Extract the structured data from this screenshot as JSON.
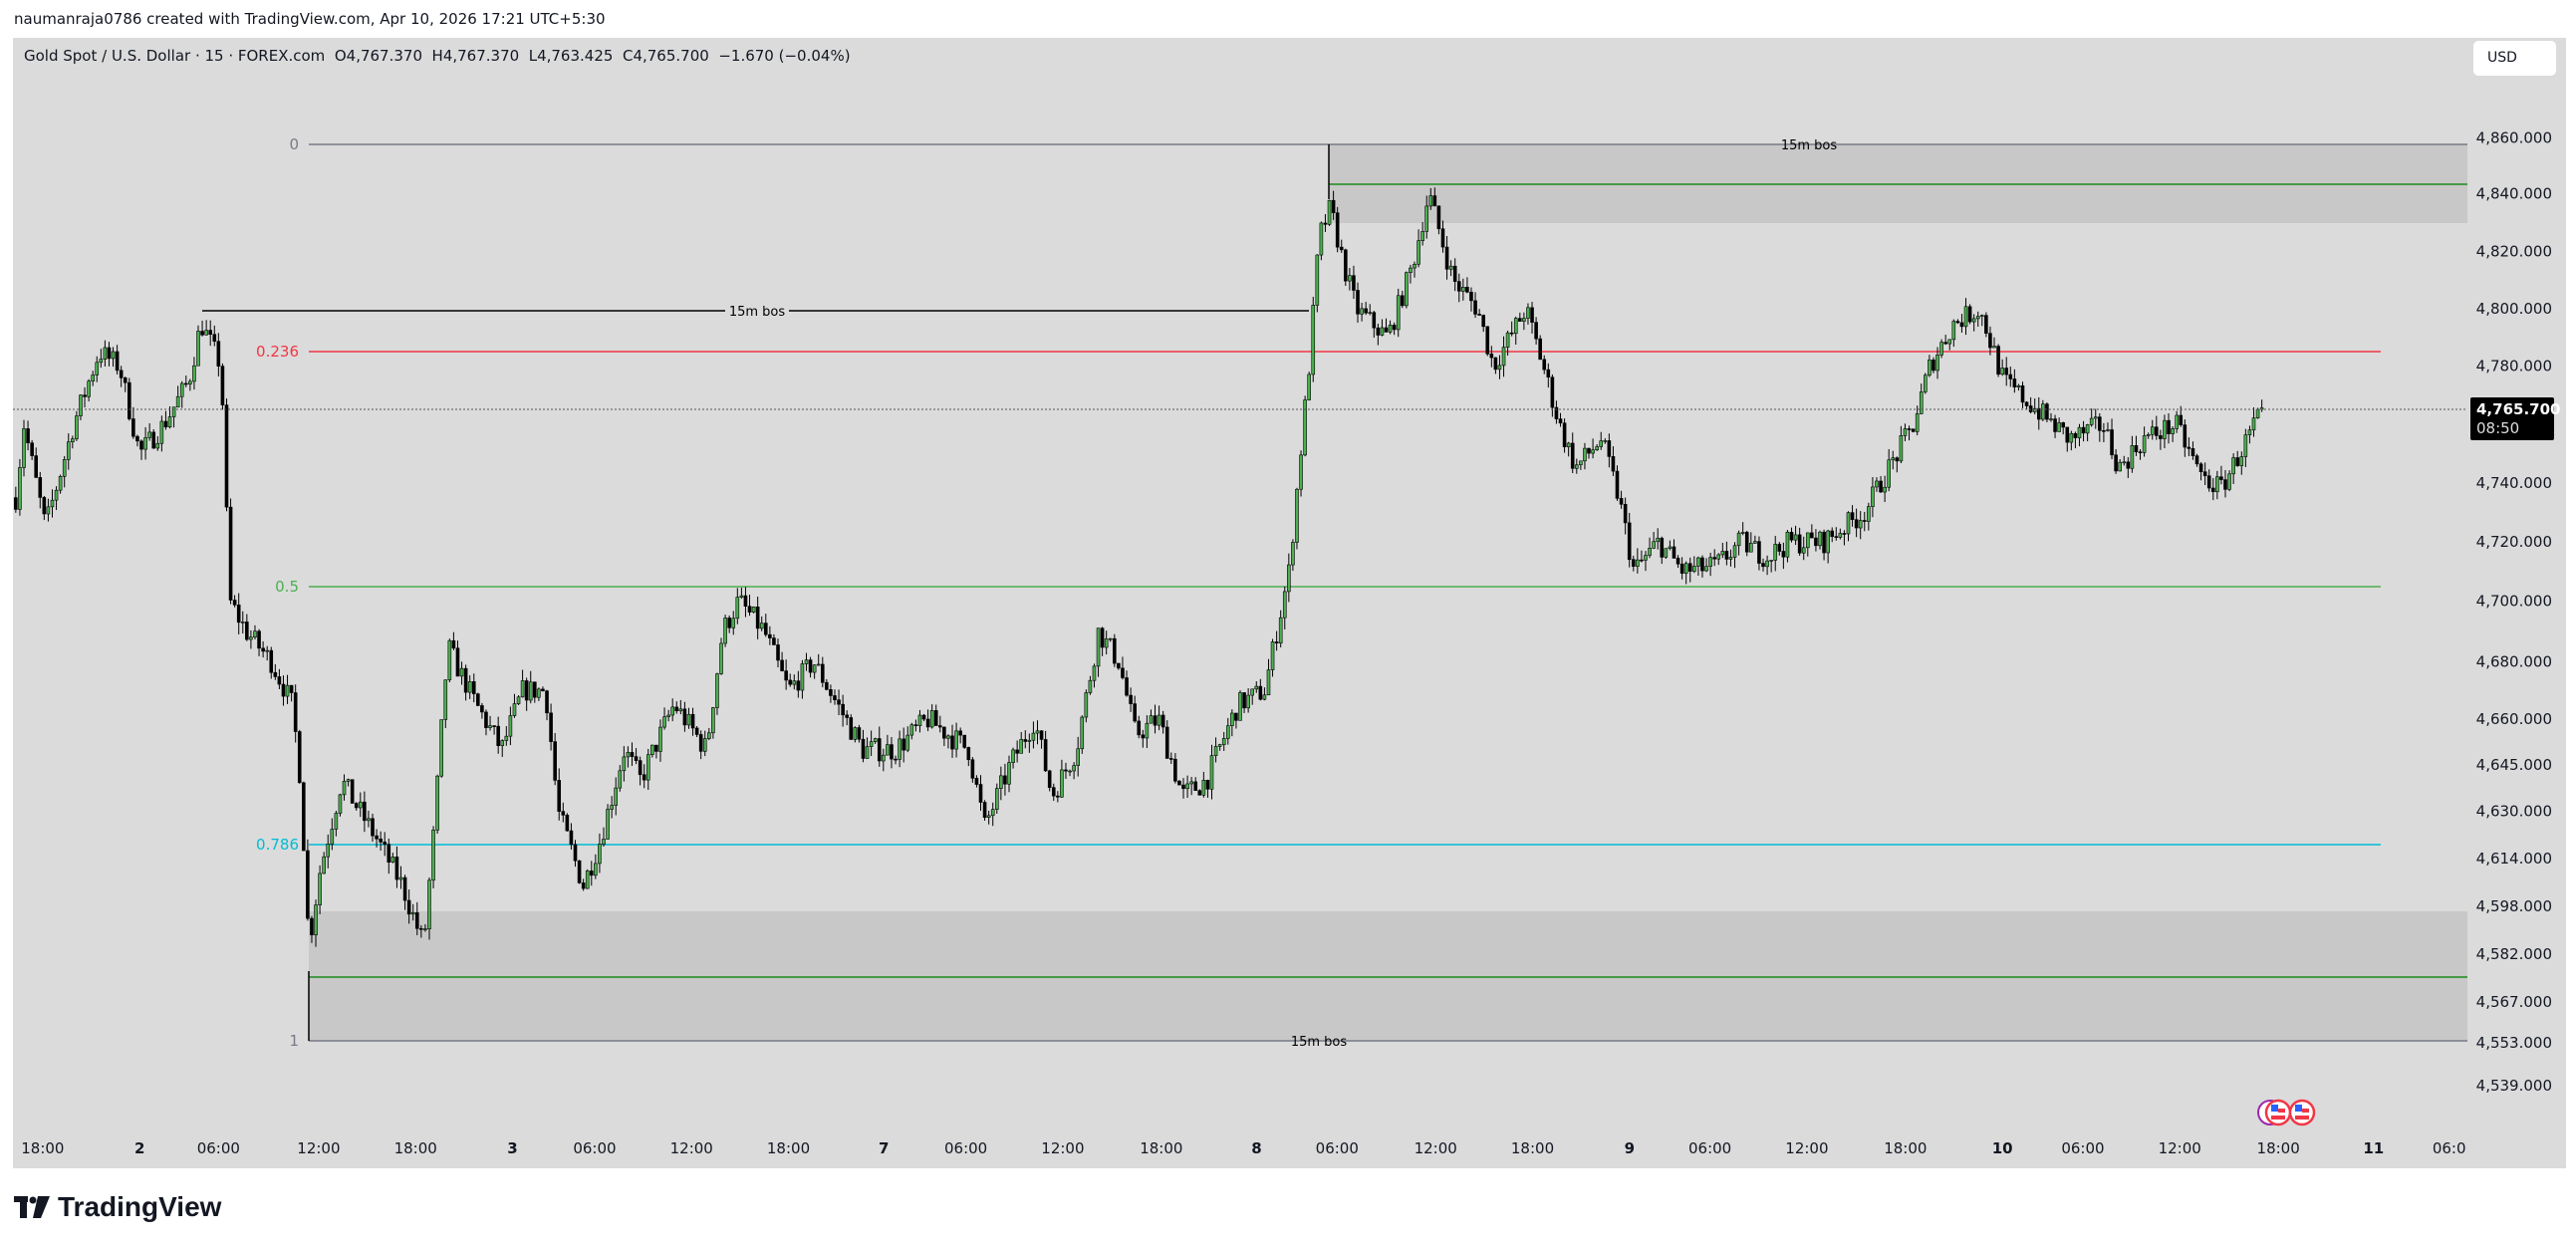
{
  "credit": "naumanraja0786 created with TradingView.com, Apr 10, 2026 17:21 UTC+5:30",
  "legend": {
    "symbol": "Gold Spot / U.S. Dollar · 15 · FOREX.com",
    "open": "O4,767.370",
    "high": "H4,767.370",
    "low": "L4,763.425",
    "close": "C4,765.700",
    "change": "−1.670 (−0.04%)"
  },
  "currency_button": "USD",
  "last_price": {
    "price": "4,765.700",
    "countdown": "08:50"
  },
  "brand": "TradingView",
  "annotations": {
    "fib_levels": [
      "0",
      "0.236",
      "0.5",
      "0.786",
      "1"
    ],
    "fib_colors": [
      "#787b86",
      "#f23645",
      "#4caf50",
      "#00bcd4",
      "#787b86"
    ],
    "bos_top": "15m bos",
    "bos_left": "15m bos",
    "bos_bottom": "15m bos"
  },
  "colors": {
    "bull": "#4caf50",
    "bear": "#000000",
    "zone": "#c8c8c8",
    "zone_line": "#1b8a1b"
  },
  "chart_data": {
    "type": "candlestick",
    "interval": "15",
    "y_ticks": [
      "4,860.000",
      "4,840.000",
      "4,820.000",
      "4,800.000",
      "4,780.000",
      "4,740.000",
      "4,720.000",
      "4,700.000",
      "4,680.000",
      "4,660.000",
      "4,645.000",
      "4,630.000",
      "4,614.000",
      "4,598.000",
      "4,582.000",
      "4,567.000",
      "4,553.000",
      "4,539.000"
    ],
    "x_ticks": [
      {
        "label": "18:00",
        "t": "1 18:00"
      },
      {
        "label": "2",
        "t": "2 00:00",
        "day": true
      },
      {
        "label": "06:00",
        "t": "2 06:00"
      },
      {
        "label": "12:00",
        "t": "2 12:00"
      },
      {
        "label": "18:00",
        "t": "2 18:00"
      },
      {
        "label": "3",
        "t": "3 00:00",
        "day": true
      },
      {
        "label": "06:00",
        "t": "3 06:00"
      },
      {
        "label": "12:00",
        "t": "3 12:00"
      },
      {
        "label": "18:00",
        "t": "3 18:00"
      },
      {
        "label": "7",
        "t": "7 00:00",
        "day": true
      },
      {
        "label": "06:00",
        "t": "7 06:00"
      },
      {
        "label": "12:00",
        "t": "7 12:00"
      },
      {
        "label": "18:00",
        "t": "7 18:00"
      },
      {
        "label": "8",
        "t": "8 00:00",
        "day": true
      },
      {
        "label": "06:00",
        "t": "8 06:00"
      },
      {
        "label": "12:00",
        "t": "8 12:00"
      },
      {
        "label": "18:00",
        "t": "8 18:00"
      },
      {
        "label": "9",
        "t": "9 00:00",
        "day": true
      },
      {
        "label": "06:00",
        "t": "9 06:00"
      },
      {
        "label": "12:00",
        "t": "9 12:00"
      },
      {
        "label": "18:00",
        "t": "9 18:00"
      },
      {
        "label": "10",
        "t": "10 00:00",
        "day": true
      },
      {
        "label": "06:00",
        "t": "10 06:00"
      },
      {
        "label": "12:00",
        "t": "10 12:00"
      },
      {
        "label": "18:00",
        "t": "10 18:00"
      },
      {
        "label": "11",
        "t": "11 00:00",
        "day": true
      },
      {
        "label": "06:0",
        "t": "11 06:00"
      }
    ],
    "approx_price_path": [
      [
        "1 16:20",
        4735
      ],
      [
        "1 16:50",
        4760
      ],
      [
        "1 18:10",
        4725
      ],
      [
        "1 19:55",
        4760
      ],
      [
        "1 21:30",
        4785
      ],
      [
        "1 22:45",
        4780
      ],
      [
        "2 00:00",
        4750
      ],
      [
        "2 01:50",
        4760
      ],
      [
        "2 03:45",
        4775
      ],
      [
        "2 04:40",
        4795
      ],
      [
        "2 06:10",
        4780
      ],
      [
        "2 06:40",
        4700
      ],
      [
        "2 07:40",
        4690
      ],
      [
        "2 09:10",
        4680
      ],
      [
        "2 10:25",
        4665
      ],
      [
        "2 10:55",
        4640
      ],
      [
        "2 11:25",
        4585
      ],
      [
        "2 12:05",
        4610
      ],
      [
        "2 13:25",
        4640
      ],
      [
        "2 15:40",
        4620
      ],
      [
        "2 17:10",
        4605
      ],
      [
        "2 18:30",
        4585
      ],
      [
        "2 19:10",
        4625
      ],
      [
        "2 20:00",
        4685
      ],
      [
        "2 21:45",
        4665
      ],
      [
        "2 23:20",
        4650
      ],
      [
        "3 00:45",
        4670
      ],
      [
        "3 02:25",
        4670
      ],
      [
        "3 03:20",
        4630
      ],
      [
        "3 05:10",
        4605
      ],
      [
        "3 06:20",
        4620
      ],
      [
        "3 07:50",
        4650
      ],
      [
        "3 08:50",
        4640
      ],
      [
        "3 10:55",
        4665
      ],
      [
        "3 12:55",
        4650
      ],
      [
        "3 13:55",
        4690
      ],
      [
        "3 14:55",
        4700
      ],
      [
        "3 16:30",
        4690
      ],
      [
        "3 18:00",
        4670
      ],
      [
        "3 19:35",
        4680
      ],
      [
        "3 21:05",
        4665
      ],
      [
        "3 22:40",
        4650
      ],
      [
        "7 00:50",
        4650
      ],
      [
        "7 03:15",
        4660
      ],
      [
        "7 06:10",
        4650
      ],
      [
        "7 07:10",
        4625
      ],
      [
        "7 08:45",
        4645
      ],
      [
        "7 10:15",
        4660
      ],
      [
        "7 11:20",
        4635
      ],
      [
        "7 12:50",
        4650
      ],
      [
        "7 14:10",
        4690
      ],
      [
        "7 15:25",
        4680
      ],
      [
        "7 16:25",
        4655
      ],
      [
        "7 17:50",
        4660
      ],
      [
        "7 19:20",
        4635
      ],
      [
        "7 20:50",
        4640
      ],
      [
        "7 22:50",
        4665
      ],
      [
        "8 00:35",
        4670
      ],
      [
        "8 02:25",
        4710
      ],
      [
        "8 03:55",
        4780
      ],
      [
        "8 04:40",
        4825
      ],
      [
        "8 05:30",
        4835
      ],
      [
        "8 06:25",
        4815
      ],
      [
        "8 07:10",
        4800
      ],
      [
        "8 09:05",
        4790
      ],
      [
        "8 10:35",
        4815
      ],
      [
        "8 11:35",
        4840
      ],
      [
        "8 13:05",
        4810
      ],
      [
        "8 14:35",
        4800
      ],
      [
        "8 15:35",
        4780
      ],
      [
        "8 17:35",
        4800
      ],
      [
        "8 18:40",
        4780
      ],
      [
        "8 19:40",
        4760
      ],
      [
        "8 20:40",
        4745
      ],
      [
        "8 22:15",
        4755
      ],
      [
        "8 23:20",
        4735
      ],
      [
        "9 00:20",
        4710
      ],
      [
        "9 02:10",
        4720
      ],
      [
        "9 04:00",
        4710
      ],
      [
        "9 06:25",
        4712
      ],
      [
        "9 07:55",
        4720
      ],
      [
        "9 09:30",
        4715
      ],
      [
        "9 11:00",
        4720
      ],
      [
        "9 13:00",
        4720
      ],
      [
        "9 15:30",
        4730
      ],
      [
        "9 17:00",
        4745
      ],
      [
        "9 18:30",
        4760
      ],
      [
        "9 19:30",
        4780
      ],
      [
        "9 21:00",
        4795
      ],
      [
        "9 22:35",
        4800
      ],
      [
        "10 00:05",
        4775
      ],
      [
        "10 02:35",
        4765
      ],
      [
        "10 05:00",
        4755
      ],
      [
        "10 07:15",
        4760
      ],
      [
        "10 08:15",
        4745
      ],
      [
        "10 09:45",
        4755
      ],
      [
        "10 11:45",
        4760
      ],
      [
        "10 13:20",
        4742
      ],
      [
        "10 14:30",
        4738
      ],
      [
        "10 15:50",
        4752
      ],
      [
        "10 17:05",
        4765.7
      ]
    ]
  }
}
